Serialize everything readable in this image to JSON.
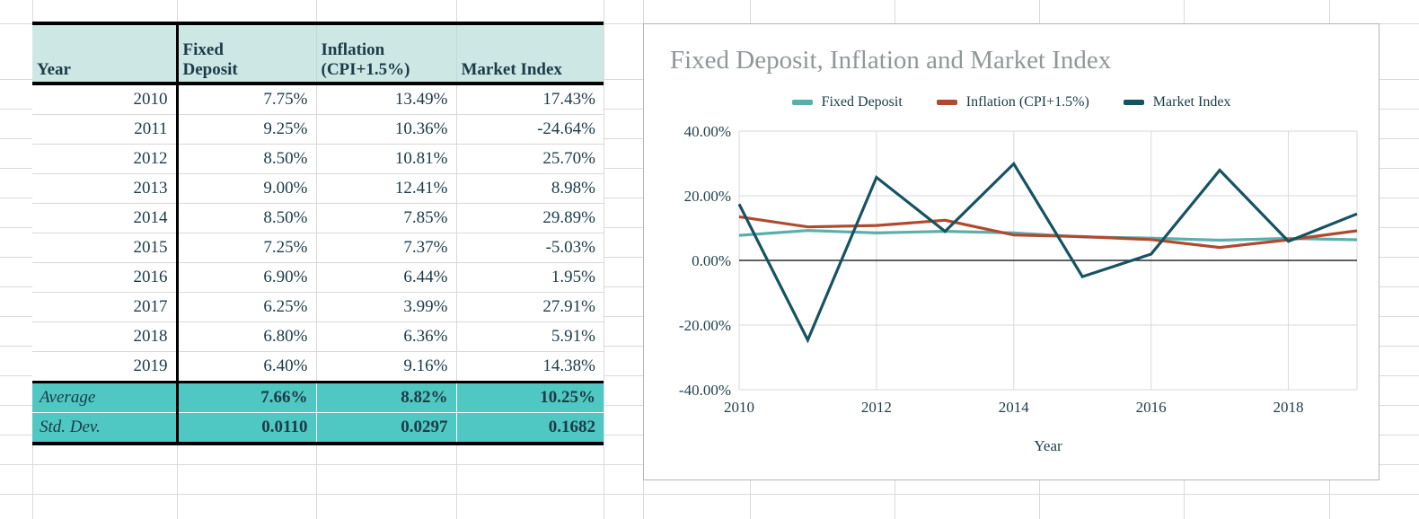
{
  "table": {
    "columns": [
      "Year",
      "Fixed\nDeposit",
      "Inflation\n(CPI+1.5%)",
      "Market Index"
    ],
    "rows": [
      [
        "2010",
        "7.75%",
        "13.49%",
        "17.43%"
      ],
      [
        "2011",
        "9.25%",
        "10.36%",
        "-24.64%"
      ],
      [
        "2012",
        "8.50%",
        "10.81%",
        "25.70%"
      ],
      [
        "2013",
        "9.00%",
        "12.41%",
        "8.98%"
      ],
      [
        "2014",
        "8.50%",
        "7.85%",
        "29.89%"
      ],
      [
        "2015",
        "7.25%",
        "7.37%",
        "-5.03%"
      ],
      [
        "2016",
        "6.90%",
        "6.44%",
        "1.95%"
      ],
      [
        "2017",
        "6.25%",
        "3.99%",
        "27.91%"
      ],
      [
        "2018",
        "6.80%",
        "6.36%",
        "5.91%"
      ],
      [
        "2019",
        "6.40%",
        "9.16%",
        "14.38%"
      ]
    ],
    "footer": [
      [
        "Average",
        "7.66%",
        "8.82%",
        "10.25%"
      ],
      [
        "Std. Dev.",
        "0.0110",
        "0.0297",
        "0.1682"
      ]
    ]
  },
  "chart": {
    "title": "Fixed Deposit, Inflation and Market Index",
    "xlabel": "Year"
  },
  "chart_data": {
    "type": "line",
    "title": "Fixed Deposit, Inflation and Market Index",
    "xlabel": "Year",
    "ylabel": "",
    "x": [
      2010,
      2011,
      2012,
      2013,
      2014,
      2015,
      2016,
      2017,
      2018,
      2019
    ],
    "series": [
      {
        "name": "Fixed Deposit",
        "color": "#5bafab",
        "values": [
          7.75,
          9.25,
          8.5,
          9.0,
          8.5,
          7.25,
          6.9,
          6.25,
          6.8,
          6.4
        ]
      },
      {
        "name": "Inflation (CPI+1.5%)",
        "color": "#b04a2f",
        "values": [
          13.49,
          10.36,
          10.81,
          12.41,
          7.85,
          7.37,
          6.44,
          3.99,
          6.36,
          9.16
        ]
      },
      {
        "name": "Market Index",
        "color": "#165362",
        "values": [
          17.43,
          -24.64,
          25.7,
          8.98,
          29.89,
          -5.03,
          1.95,
          27.91,
          5.91,
          14.38
        ]
      }
    ],
    "ylim": [
      -40,
      40
    ],
    "ytick_values": [
      40,
      20,
      0,
      -20,
      -40
    ],
    "yticks": [
      "40.00%",
      "20.00%",
      "0.00%",
      "-20.00%",
      "-40.00%"
    ],
    "xtick_values": [
      2010,
      2012,
      2014,
      2016,
      2018
    ],
    "xticks": [
      "2010",
      "2012",
      "2014",
      "2016",
      "2018"
    ],
    "grid": true,
    "legend_position": "top"
  },
  "colors": {
    "header_fill": "#cde7e4",
    "footer_fill": "#4fc7c2",
    "text": "#1c3b48",
    "title_gray": "#8f9899",
    "gridline": "#d9d9d9",
    "zero_line": "#2b2b2b"
  }
}
